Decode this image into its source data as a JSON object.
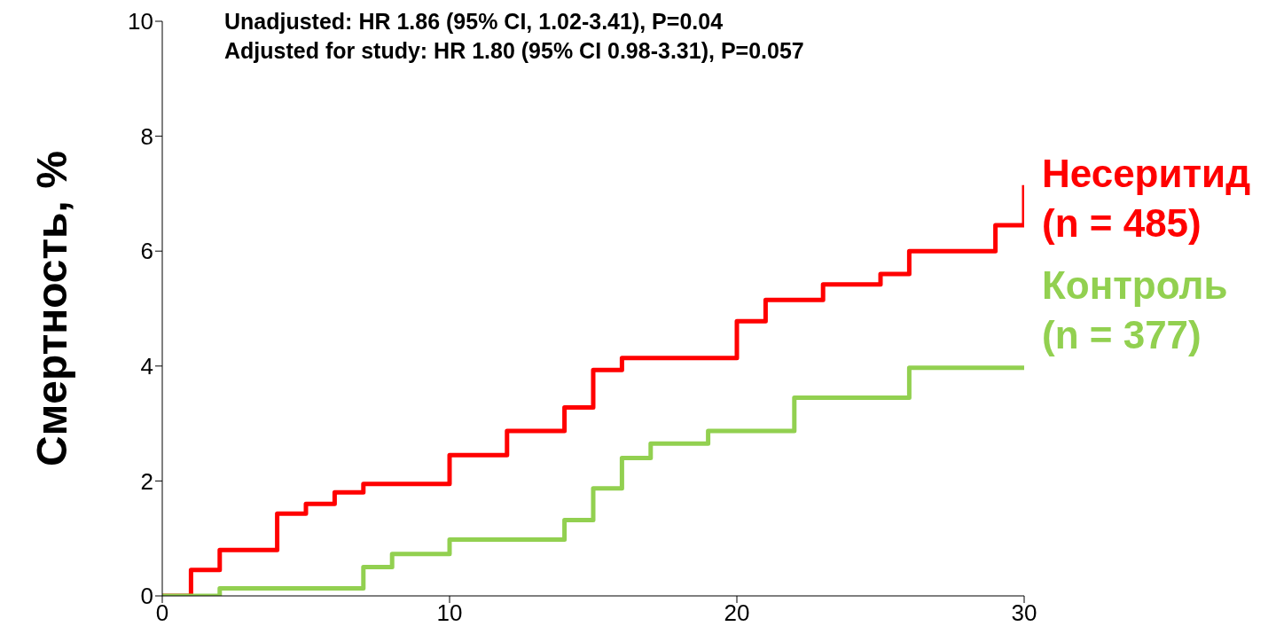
{
  "chart_data": {
    "type": "step",
    "ylabel": "Смертность, %",
    "annotations": [
      "Unadjusted: HR 1.86 (95% CI, 1.02-3.41), P=0.04",
      "Adjusted for study: HR 1.80 (95% CI 0.98-3.31), P=0.057"
    ],
    "series": [
      {
        "name": "Несеритид (n = 485)",
        "color": "#ff0000",
        "x": [
          0,
          1,
          2,
          4,
          5,
          6,
          7,
          10,
          12,
          14,
          15,
          16,
          20,
          21,
          23,
          25,
          26,
          29,
          30
        ],
        "values": [
          0,
          0.45,
          0.8,
          1.43,
          1.6,
          1.8,
          1.95,
          2.45,
          2.87,
          3.28,
          3.93,
          4.14,
          4.78,
          5.15,
          5.42,
          5.6,
          6.0,
          6.45,
          7.15
        ]
      },
      {
        "name": "Контроль (n = 377)",
        "color": "#92d050",
        "x": [
          0,
          2,
          7,
          8,
          10,
          14,
          15,
          16,
          17,
          19,
          22,
          26,
          30
        ],
        "values": [
          0,
          0.13,
          0.5,
          0.73,
          0.98,
          1.32,
          1.87,
          2.4,
          2.65,
          2.87,
          3.45,
          3.97,
          3.97
        ]
      }
    ],
    "xlim": [
      0,
      30
    ],
    "xticks": [
      0,
      10,
      20,
      30
    ],
    "ylim": [
      0,
      10
    ],
    "yticks": [
      0,
      2,
      4,
      6,
      8,
      10
    ],
    "grid": false,
    "legend": "right",
    "marker": "none",
    "line_style": "solid"
  }
}
